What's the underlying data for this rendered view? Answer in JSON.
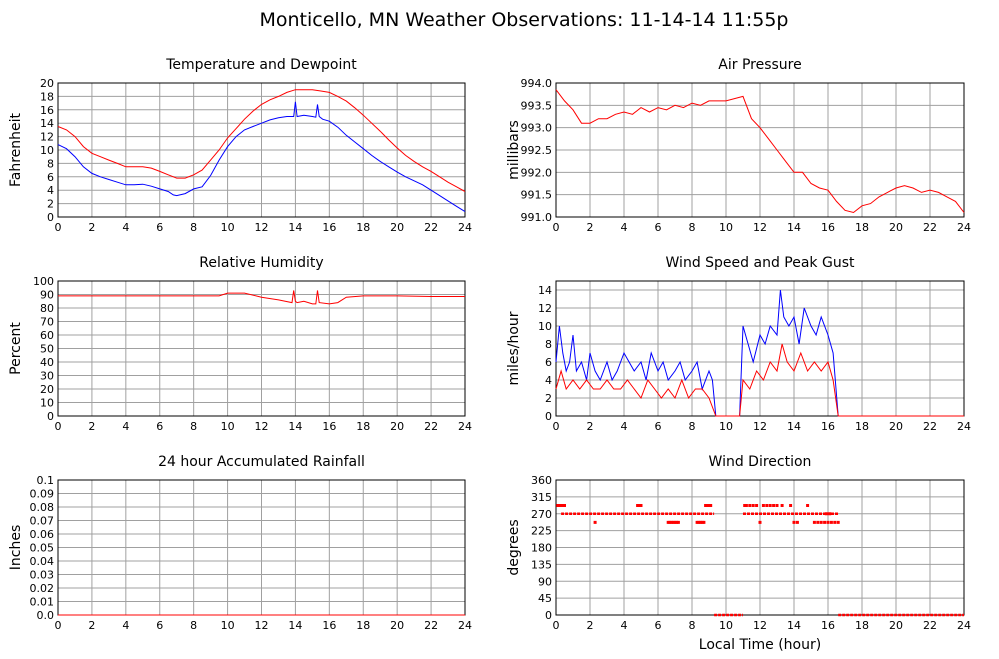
{
  "page_title": "Monticello, MN Weather Observations: 11-14-14 11:55p",
  "x_axis_title": "Local Time (hour)",
  "colors": {
    "red": "#ff0000",
    "blue": "#0000ff",
    "grid": "#a0a0a0"
  },
  "chart_data": [
    {
      "id": "temp",
      "type": "line",
      "title": "Temperature and Dewpoint",
      "ylabel": "Fahrenheit",
      "xlim": [
        0,
        24
      ],
      "ylim": [
        0,
        20
      ],
      "yticks": [
        "0",
        "2",
        "4",
        "6",
        "8",
        "10",
        "12",
        "14",
        "16",
        "18",
        "20"
      ],
      "xticks": [
        "0",
        "2",
        "4",
        "6",
        "8",
        "10",
        "12",
        "14",
        "16",
        "18",
        "20",
        "22",
        "24"
      ],
      "grid": true,
      "series": [
        {
          "color": "#ff0000",
          "x": [
            0,
            0.5,
            1,
            1.5,
            2,
            2.5,
            3,
            3.5,
            4,
            4.5,
            5,
            5.5,
            6,
            6.5,
            7,
            7.5,
            8,
            8.5,
            9,
            9.5,
            10,
            10.5,
            11,
            11.5,
            12,
            12.5,
            13,
            13.5,
            14,
            14.5,
            15,
            15.5,
            16,
            16.5,
            17,
            17.5,
            18,
            18.5,
            19,
            19.5,
            20,
            20.5,
            21,
            21.5,
            22,
            22.5,
            23,
            23.5,
            24
          ],
          "y": [
            13.5,
            13,
            12,
            10.5,
            9.5,
            9,
            8.5,
            8,
            7.5,
            7.5,
            7.5,
            7.3,
            6.8,
            6.3,
            5.8,
            5.8,
            6.3,
            7,
            8.5,
            10,
            11.8,
            13.2,
            14.6,
            15.8,
            16.8,
            17.5,
            18,
            18.6,
            19,
            19,
            19,
            18.8,
            18.6,
            18,
            17.3,
            16.3,
            15.2,
            14,
            12.8,
            11.5,
            10.3,
            9.2,
            8.3,
            7.5,
            6.8,
            6,
            5.2,
            4.5,
            3.8
          ]
        },
        {
          "color": "#0000ff",
          "x": [
            0,
            0.5,
            1,
            1.5,
            2,
            2.5,
            3,
            3.5,
            4,
            4.5,
            5,
            5.5,
            6,
            6.5,
            6.8,
            7,
            7.5,
            8,
            8.5,
            9,
            9.5,
            10,
            10.5,
            11,
            11.5,
            12,
            12.5,
            13,
            13.5,
            13.9,
            14,
            14.1,
            14.5,
            15,
            15.2,
            15.3,
            15.4,
            15.6,
            16,
            16.5,
            17,
            17.5,
            18,
            18.5,
            19,
            19.5,
            20,
            20.5,
            21,
            21.5,
            22,
            22.5,
            23,
            23.5,
            24
          ],
          "y": [
            10.8,
            10.2,
            9,
            7.5,
            6.5,
            6,
            5.6,
            5.2,
            4.8,
            4.8,
            4.9,
            4.6,
            4.2,
            3.8,
            3.3,
            3.2,
            3.5,
            4.2,
            4.5,
            6.2,
            8.5,
            10.5,
            12,
            13,
            13.5,
            14,
            14.5,
            14.8,
            15,
            15,
            17.2,
            15,
            15.2,
            15,
            14.9,
            16.8,
            15,
            14.6,
            14.3,
            13.4,
            12.2,
            11.2,
            10.2,
            9.2,
            8.3,
            7.5,
            6.7,
            6,
            5.4,
            4.8,
            4,
            3.2,
            2.4,
            1.6,
            0.8
          ]
        }
      ]
    },
    {
      "id": "pressure",
      "type": "line",
      "title": "Air Pressure",
      "ylabel": "millibars",
      "xlim": [
        0,
        24
      ],
      "ylim": [
        991.0,
        994.0
      ],
      "yticks": [
        "991.0",
        "991.5",
        "992.0",
        "992.5",
        "993.0",
        "993.5",
        "994.0"
      ],
      "xticks": [
        "0",
        "2",
        "4",
        "6",
        "8",
        "10",
        "12",
        "14",
        "16",
        "18",
        "20",
        "22",
        "24"
      ],
      "grid": true,
      "series": [
        {
          "color": "#ff0000",
          "x": [
            0,
            0.5,
            1,
            1.5,
            2,
            2.5,
            3,
            3.5,
            4,
            4.5,
            5,
            5.5,
            6,
            6.5,
            7,
            7.5,
            8,
            8.5,
            9,
            9.5,
            10,
            10.5,
            11,
            11.5,
            12,
            12.5,
            13,
            13.5,
            14,
            14.5,
            15,
            15.5,
            16,
            16.5,
            17,
            17.5,
            18,
            18.5,
            19,
            19.5,
            20,
            20.5,
            21,
            21.5,
            22,
            22.5,
            23,
            23.5,
            24
          ],
          "y": [
            993.85,
            993.6,
            993.4,
            993.1,
            993.1,
            993.2,
            993.2,
            993.3,
            993.35,
            993.3,
            993.45,
            993.35,
            993.45,
            993.4,
            993.5,
            993.45,
            993.55,
            993.5,
            993.6,
            993.6,
            993.6,
            993.65,
            993.7,
            993.2,
            993.0,
            992.75,
            992.5,
            992.25,
            992.0,
            992.0,
            991.75,
            991.65,
            991.6,
            991.35,
            991.15,
            991.1,
            991.25,
            991.3,
            991.45,
            991.55,
            991.65,
            991.7,
            991.65,
            991.55,
            991.6,
            991.55,
            991.45,
            991.35,
            991.1
          ]
        }
      ]
    },
    {
      "id": "humidity",
      "type": "line",
      "title": "Relative Humidity",
      "ylabel": "Percent",
      "xlim": [
        0,
        24
      ],
      "ylim": [
        0,
        100
      ],
      "yticks": [
        "0",
        "10",
        "20",
        "30",
        "40",
        "50",
        "60",
        "70",
        "80",
        "90",
        "100"
      ],
      "xticks": [
        "0",
        "2",
        "4",
        "6",
        "8",
        "10",
        "12",
        "14",
        "16",
        "18",
        "20",
        "22",
        "24"
      ],
      "grid": true,
      "series": [
        {
          "color": "#ff0000",
          "x": [
            0,
            2,
            4,
            6,
            8,
            9.5,
            10,
            11,
            12,
            13,
            13.8,
            13.9,
            14,
            14.1,
            14.5,
            15,
            15.2,
            15.3,
            15.4,
            16,
            16.5,
            17,
            18,
            20,
            22,
            24
          ],
          "y": [
            89,
            89,
            89,
            89,
            89,
            89,
            91,
            91,
            88,
            86,
            84,
            93,
            85,
            84,
            85,
            83,
            83,
            93,
            84,
            83,
            84,
            88,
            89,
            89,
            88.5,
            88.5
          ]
        }
      ]
    },
    {
      "id": "wind",
      "type": "line",
      "title": "Wind Speed and Peak Gust",
      "ylabel": "miles/hour",
      "xlim": [
        0,
        24
      ],
      "ylim": [
        0,
        15
      ],
      "yticks": [
        "0",
        "2",
        "4",
        "6",
        "8",
        "10",
        "12",
        "14"
      ],
      "xticks": [
        "0",
        "2",
        "4",
        "6",
        "8",
        "10",
        "12",
        "14",
        "16",
        "18",
        "20",
        "22",
        "24"
      ],
      "grid": true,
      "series": [
        {
          "color": "#0000ff",
          "x": [
            0,
            0.2,
            0.4,
            0.6,
            0.8,
            1.0,
            1.2,
            1.5,
            1.8,
            2.0,
            2.3,
            2.6,
            3.0,
            3.3,
            3.6,
            4.0,
            4.3,
            4.6,
            5.0,
            5.3,
            5.6,
            6.0,
            6.3,
            6.6,
            7.0,
            7.3,
            7.6,
            8.0,
            8.3,
            8.6,
            9.0,
            9.2,
            9.4,
            10.8,
            11.0,
            11.3,
            11.6,
            12.0,
            12.3,
            12.6,
            13.0,
            13.2,
            13.4,
            13.7,
            14.0,
            14.3,
            14.6,
            15.0,
            15.3,
            15.6,
            16.0,
            16.3,
            16.6,
            17.0,
            24
          ],
          "y": [
            6,
            10,
            7,
            5,
            6,
            9,
            5,
            6,
            4,
            7,
            5,
            4,
            6,
            4,
            5,
            7,
            6,
            5,
            6,
            4,
            7,
            5,
            6,
            4,
            5,
            6,
            4,
            5,
            6,
            3,
            5,
            4,
            0,
            0,
            10,
            8,
            6,
            9,
            8,
            10,
            9,
            14,
            11,
            10,
            11,
            8,
            12,
            10,
            9,
            11,
            9,
            7,
            0,
            0,
            0
          ]
        },
        {
          "color": "#ff0000",
          "x": [
            0,
            0.3,
            0.6,
            1.0,
            1.4,
            1.8,
            2.2,
            2.6,
            3.0,
            3.4,
            3.8,
            4.2,
            4.6,
            5.0,
            5.4,
            5.8,
            6.2,
            6.6,
            7.0,
            7.4,
            7.8,
            8.2,
            8.6,
            9.0,
            9.4,
            10.8,
            11.0,
            11.4,
            11.8,
            12.2,
            12.6,
            13.0,
            13.3,
            13.6,
            14.0,
            14.4,
            14.8,
            15.2,
            15.6,
            16.0,
            16.3,
            16.6,
            17.0,
            24
          ],
          "y": [
            3,
            5,
            3,
            4,
            3,
            4,
            3,
            3,
            4,
            3,
            3,
            4,
            3,
            2,
            4,
            3,
            2,
            3,
            2,
            4,
            2,
            3,
            3,
            2,
            0,
            0,
            4,
            3,
            5,
            4,
            6,
            5,
            8,
            6,
            5,
            7,
            5,
            6,
            5,
            6,
            4,
            0,
            0,
            0
          ]
        }
      ]
    },
    {
      "id": "rain",
      "type": "line",
      "title": "24 hour Accumulated Rainfall",
      "ylabel": "Inches",
      "xlim": [
        0,
        24
      ],
      "ylim": [
        0,
        0.1
      ],
      "yticks": [
        "0.0",
        "0.01",
        "0.02",
        "0.03",
        "0.04",
        "0.05",
        "0.06",
        "0.07",
        "0.08",
        "0.09",
        "0.1"
      ],
      "xticks": [
        "0",
        "2",
        "4",
        "6",
        "8",
        "10",
        "12",
        "14",
        "16",
        "18",
        "20",
        "22",
        "24"
      ],
      "grid": true,
      "series": [
        {
          "color": "#ff0000",
          "x": [
            0,
            24
          ],
          "y": [
            0,
            0
          ]
        }
      ]
    },
    {
      "id": "direction",
      "type": "scatter",
      "title": "Wind Direction",
      "ylabel": "degrees",
      "xlim": [
        0,
        24
      ],
      "ylim": [
        0,
        360
      ],
      "yticks": [
        "0",
        "45",
        "90",
        "135",
        "180",
        "225",
        "270",
        "315",
        "360"
      ],
      "xticks": [
        "0",
        "2",
        "4",
        "6",
        "8",
        "10",
        "12",
        "14",
        "16",
        "18",
        "20",
        "22",
        "24"
      ],
      "grid": true,
      "segments": [
        {
          "x0": 0.3,
          "x1": 9.3,
          "y": 270
        },
        {
          "x0": 11.0,
          "x1": 16.6,
          "y": 270
        },
        {
          "x0": 9.3,
          "x1": 11.0,
          "y": 0
        },
        {
          "x0": 16.6,
          "x1": 24,
          "y": 0
        }
      ],
      "series": [
        {
          "color": "#ff0000",
          "x": [
            0.1,
            0.2,
            0.3,
            0.4,
            0.5,
            2.3,
            4.8,
            4.9,
            5.0,
            6.6,
            6.7,
            6.8,
            6.9,
            7.0,
            7.1,
            7.2,
            8.3,
            8.4,
            8.5,
            8.6,
            8.7,
            8.8,
            8.9,
            9.0,
            9.1,
            11.1,
            11.2,
            11.4,
            11.6,
            11.8,
            12.0,
            12.2,
            12.4,
            12.6,
            12.8,
            13.0,
            13.3,
            13.8,
            14.0,
            14.2,
            14.8,
            15.2,
            15.4,
            15.6,
            15.8,
            16.0,
            16.2,
            16.4,
            16.6,
            15.9,
            16.1
          ],
          "y": [
            292,
            292,
            292,
            292,
            292,
            247,
            292,
            292,
            292,
            247,
            247,
            247,
            247,
            247,
            247,
            247,
            247,
            247,
            247,
            247,
            247,
            292,
            292,
            292,
            292,
            292,
            292,
            292,
            292,
            292,
            247,
            292,
            292,
            292,
            292,
            292,
            292,
            292,
            247,
            247,
            292,
            247,
            247,
            247,
            247,
            247,
            247,
            247,
            247,
            270,
            270
          ]
        }
      ]
    }
  ]
}
